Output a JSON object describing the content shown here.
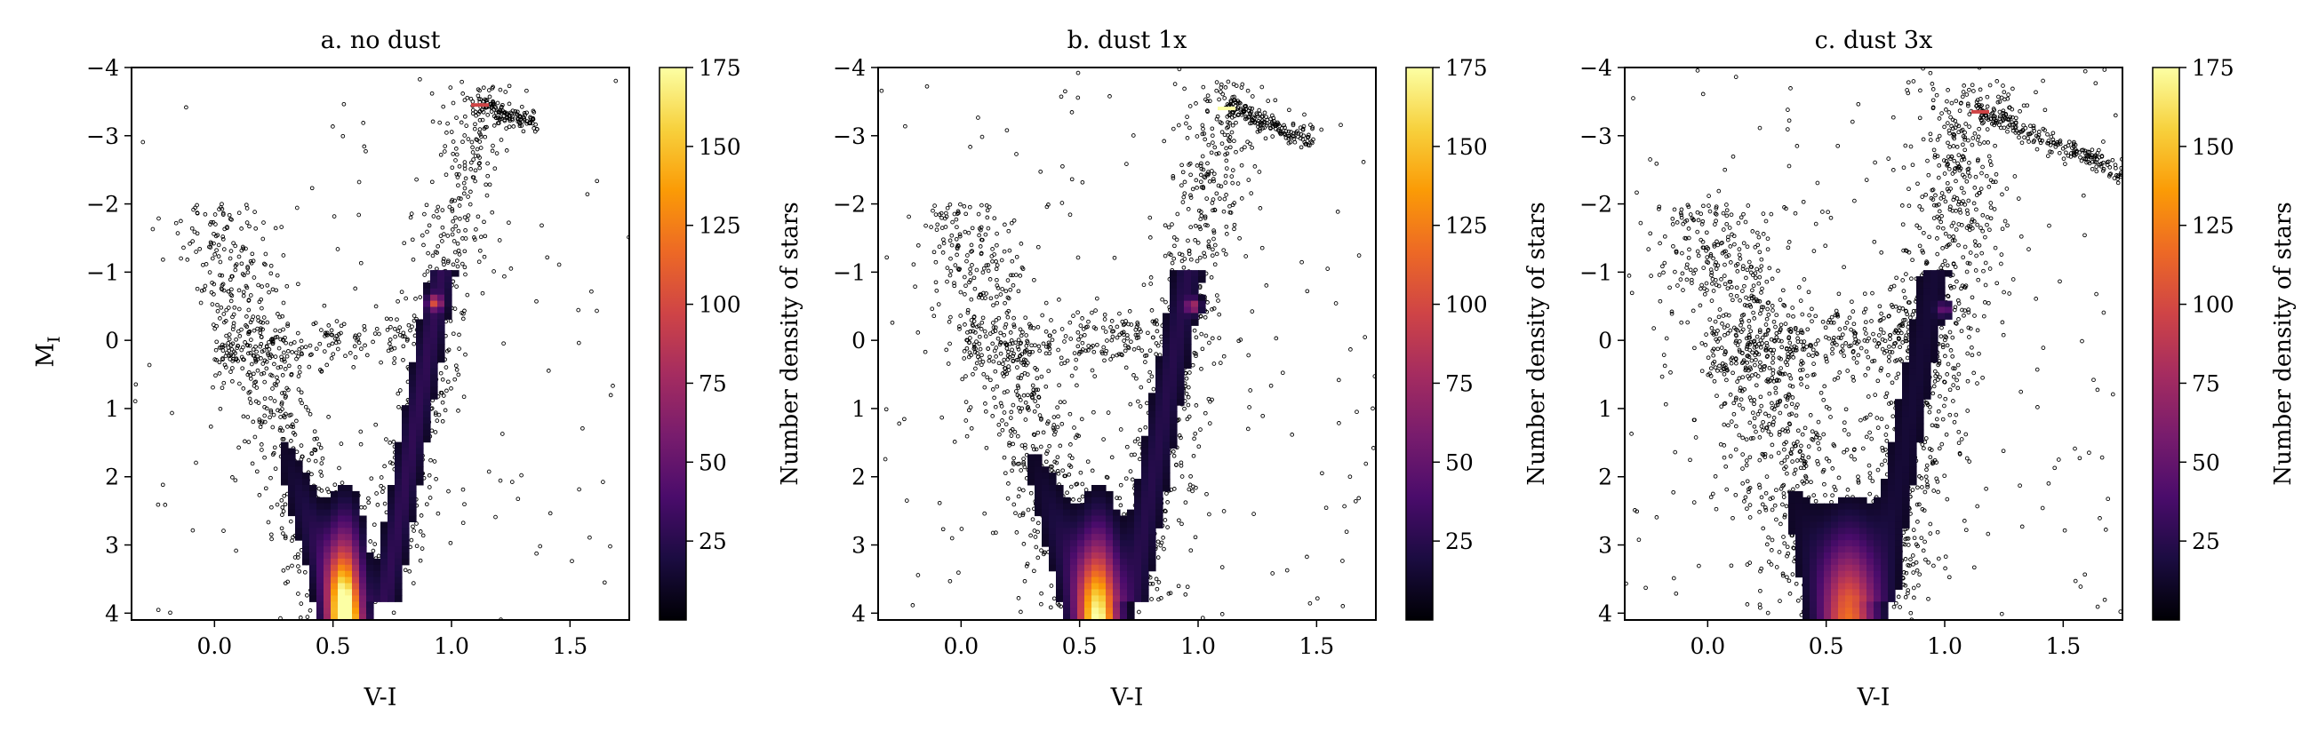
{
  "figure": {
    "colorbar_label": "Number density of stars",
    "colormap": [
      "#000004",
      "#1b0c41",
      "#4a0c6b",
      "#781c6d",
      "#a52c60",
      "#cf4446",
      "#ed6925",
      "#fb9b06",
      "#f7d13d",
      "#fcffa4"
    ],
    "scatter_color": "#000000"
  },
  "chart_data": [
    {
      "type": "heatmap",
      "title": "a. no dust",
      "xlabel": "V-I",
      "ylabel": "M_I",
      "ylabel_main": "M",
      "ylabel_sub": "I",
      "xlim": [
        -0.35,
        1.75
      ],
      "ylim": [
        4.1,
        -4
      ],
      "y_inverted": true,
      "xticks": [
        0.0,
        0.5,
        1.0,
        1.5
      ],
      "xtick_labels": [
        "0.0",
        "0.5",
        "1.0",
        "1.5"
      ],
      "yticks": [
        -4,
        -3,
        -2,
        -1,
        0,
        1,
        2,
        3,
        4
      ],
      "ytick_labels": [
        "−4",
        "−3",
        "−2",
        "−1",
        "0",
        "1",
        "2",
        "3",
        "4"
      ],
      "colorbar": {
        "label": "Number density of stars",
        "range": [
          0,
          175
        ],
        "ticks": [
          25,
          50,
          75,
          100,
          125,
          150,
          175
        ],
        "tick_labels": [
          "25",
          "50",
          "75",
          "100",
          "125",
          "150",
          "175"
        ]
      },
      "red_clump": {
        "x": 0.93,
        "y": -0.55
      },
      "rgb_tip": {
        "x": 1.12,
        "y": -3.45
      },
      "peak": {
        "x": 0.55,
        "y": 3.6,
        "density": 175
      }
    },
    {
      "type": "heatmap",
      "title": "b. dust 1x",
      "xlabel": "V-I",
      "ylabel": "",
      "xlim": [
        -0.35,
        1.75
      ],
      "ylim": [
        4.1,
        -4
      ],
      "y_inverted": true,
      "xticks": [
        0.0,
        0.5,
        1.0,
        1.5
      ],
      "xtick_labels": [
        "0.0",
        "0.5",
        "1.0",
        "1.5"
      ],
      "yticks": [
        -4,
        -3,
        -2,
        -1,
        0,
        1,
        2,
        3,
        4
      ],
      "ytick_labels": [
        "−4",
        "−3",
        "−2",
        "−1",
        "0",
        "1",
        "2",
        "3",
        "4"
      ],
      "colorbar": {
        "label": "Number density of stars",
        "range": [
          0,
          175
        ],
        "ticks": [
          25,
          50,
          75,
          100,
          125,
          150,
          175
        ],
        "tick_labels": [
          "25",
          "50",
          "75",
          "100",
          "125",
          "150",
          "175"
        ]
      },
      "red_clump": {
        "x": 0.98,
        "y": -0.5
      },
      "rgb_tip": {
        "x": 1.12,
        "y": -3.4
      },
      "peak": {
        "x": 0.58,
        "y": 3.5,
        "density": 150
      }
    },
    {
      "type": "heatmap",
      "title": "c. dust 3x",
      "xlabel": "V-I",
      "ylabel": "",
      "xlim": [
        -0.35,
        1.75
      ],
      "ylim": [
        4.1,
        -4
      ],
      "y_inverted": true,
      "xticks": [
        0.0,
        0.5,
        1.0,
        1.5
      ],
      "xtick_labels": [
        "0.0",
        "0.5",
        "1.0",
        "1.5"
      ],
      "yticks": [
        -4,
        -3,
        -2,
        -1,
        0,
        1,
        2,
        3,
        4
      ],
      "ytick_labels": [
        "−4",
        "−3",
        "−2",
        "−1",
        "0",
        "1",
        "2",
        "3",
        "4"
      ],
      "colorbar": {
        "label": "Number density of stars",
        "range": [
          0,
          175
        ],
        "ticks": [
          25,
          50,
          75,
          100,
          125,
          150,
          175
        ],
        "tick_labels": [
          "25",
          "50",
          "75",
          "100",
          "125",
          "150",
          "175"
        ]
      },
      "red_clump": {
        "x": 1.0,
        "y": -0.45
      },
      "rgb_tip": {
        "x": 1.15,
        "y": -3.35
      },
      "peak": {
        "x": 0.6,
        "y": 3.4,
        "density": 100
      }
    }
  ]
}
